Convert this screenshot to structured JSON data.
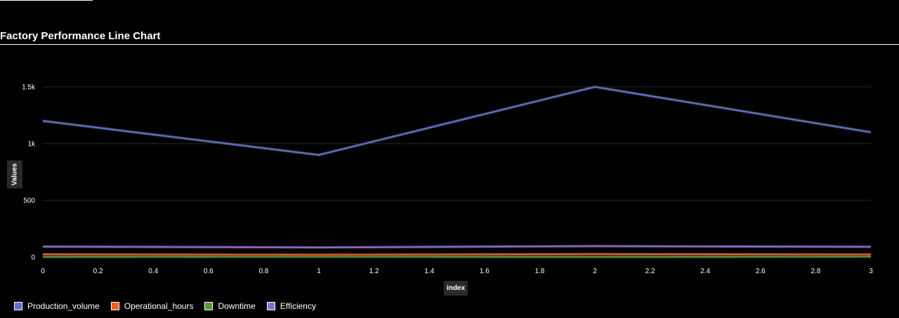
{
  "chart_data": {
    "type": "line",
    "title": "Factory Performance Line Chart",
    "xlabel": "index",
    "ylabel": "Values",
    "x": [
      0,
      1,
      2,
      3
    ],
    "xlim": [
      0,
      3
    ],
    "ylim": [
      0,
      1500
    ],
    "x_ticks": [
      "0",
      "0.2",
      "0.4",
      "0.6",
      "0.8",
      "1",
      "1.2",
      "1.4",
      "1.6",
      "1.8",
      "2",
      "2.2",
      "2.4",
      "2.6",
      "2.8",
      "3"
    ],
    "y_ticks": [
      "0",
      "500",
      "1k",
      "1.5k"
    ],
    "grid": true,
    "legend_position": "bottom-left",
    "series": [
      {
        "name": "Production_volume",
        "color": "#5b6fd6",
        "values": [
          1200,
          900,
          1500,
          1100
        ]
      },
      {
        "name": "Operational_hours",
        "color": "#f25d18",
        "values": [
          24,
          20,
          26,
          22
        ]
      },
      {
        "name": "Downtime",
        "color": "#5a9a2e",
        "values": [
          2,
          3,
          1,
          4
        ]
      },
      {
        "name": "Efficiency",
        "color": "#8f6ad6",
        "values": [
          92,
          85,
          96,
          90
        ]
      }
    ]
  }
}
